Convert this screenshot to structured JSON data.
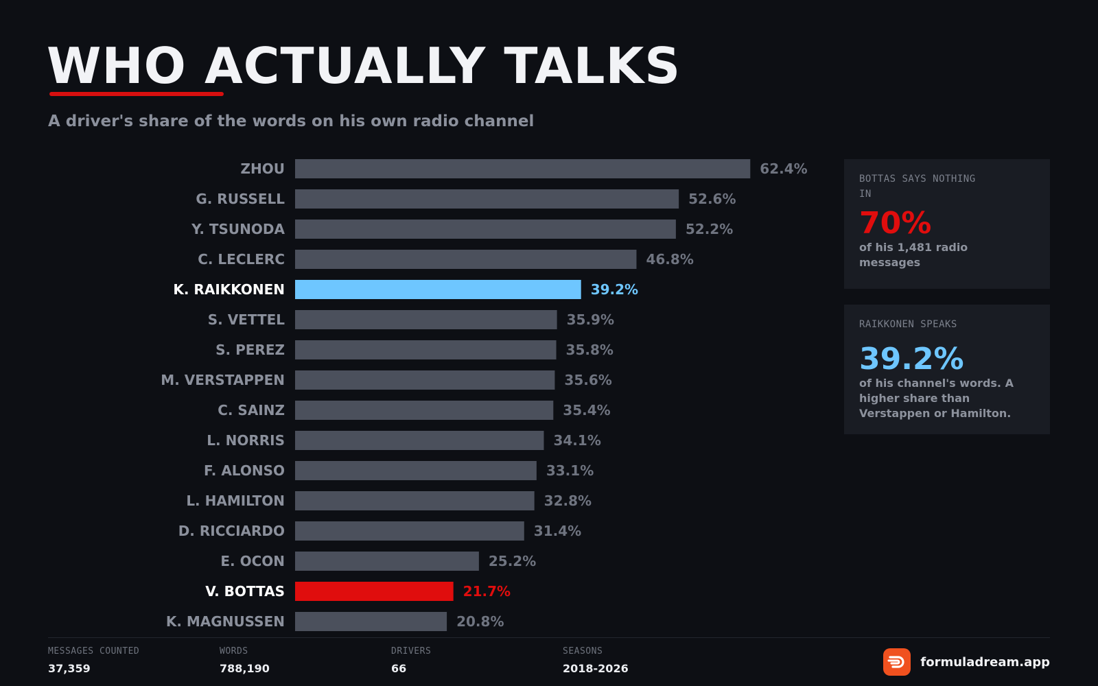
{
  "header": {
    "title": "WHO ACTUALLY TALKS",
    "subtitle": "A driver's share of the words on his own radio channel"
  },
  "colors": {
    "background": "#0d0f14",
    "bar_default": "#4b505c",
    "label_default": "#8b909c",
    "value_default": "#6f7480",
    "highlight_blue": "#6ec6ff",
    "highlight_red": "#e00d0d",
    "accent_red": "#d70f0f",
    "brand_orange": "#f0511f"
  },
  "chart_data": {
    "type": "bar",
    "orientation": "horizontal",
    "title": "WHO ACTUALLY TALKS",
    "subtitle": "A driver's share of the words on his own radio channel",
    "categories": [
      "ZHOU",
      "G. RUSSELL",
      "Y. TSUNODA",
      "C. LECLERC",
      "K. RAIKKONEN",
      "S. VETTEL",
      "S. PEREZ",
      "M. VERSTAPPEN",
      "C. SAINZ",
      "L. NORRIS",
      "F. ALONSO",
      "L. HAMILTON",
      "D. RICCIARDO",
      "E. OCON",
      "V. BOTTAS",
      "K. MAGNUSSEN"
    ],
    "values": [
      62.4,
      52.6,
      52.2,
      46.8,
      39.2,
      35.9,
      35.8,
      35.6,
      35.4,
      34.1,
      33.1,
      32.8,
      31.4,
      25.2,
      21.7,
      20.8
    ],
    "value_labels": [
      "62.4%",
      "52.6%",
      "52.2%",
      "46.8%",
      "39.2%",
      "35.9%",
      "35.8%",
      "35.6%",
      "35.4%",
      "34.1%",
      "33.1%",
      "32.8%",
      "31.4%",
      "25.2%",
      "21.7%",
      "20.8%"
    ],
    "highlights": {
      "K. RAIKKONEN": "#6ec6ff",
      "V. BOTTAS": "#e00d0d"
    },
    "unit": "%",
    "xlabel": "",
    "ylabel": "",
    "grid": false,
    "legend": "none"
  },
  "cards": [
    {
      "label": "BOTTAS SAYS NOTHING IN",
      "big": "70%",
      "text": "of his 1,481 radio messages"
    },
    {
      "label": "RAIKKONEN SPEAKS",
      "big": "39.2%",
      "text": "of his channel's words. A higher share than Verstappen or Hamilton."
    }
  ],
  "footer": {
    "stats": [
      {
        "label": "MESSAGES COUNTED",
        "value": "37,359"
      },
      {
        "label": "WORDS",
        "value": "788,190"
      },
      {
        "label": "DRIVERS",
        "value": "66"
      },
      {
        "label": "SEASONS",
        "value": "2018-2026"
      }
    ],
    "brand": "formuladream.app",
    "brand_icon": "formuladream-logo-icon"
  }
}
